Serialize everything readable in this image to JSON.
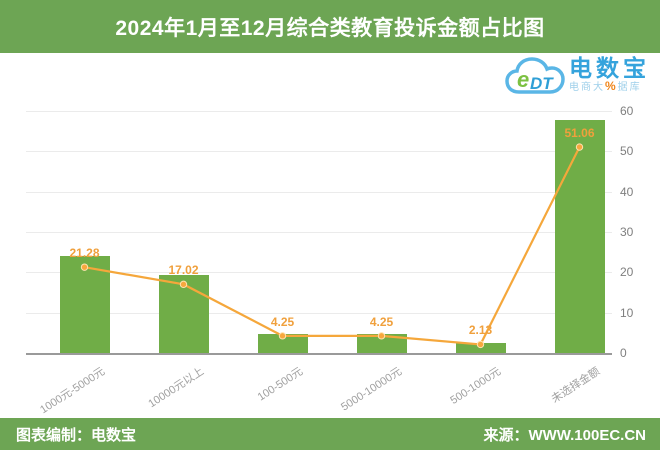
{
  "header": {
    "title": "2024年1月至12月综合类教育投诉金额占比图",
    "bg_color": "#6da554",
    "text_color": "#ffffff"
  },
  "logo": {
    "cloud_e": "e",
    "cloud_dt": "DT",
    "name": "电数宝",
    "sub_left": "电商大",
    "sub_pct": "%",
    "sub_right": "据库",
    "name_color": "#35a3dc",
    "cloud_color": "#5ab6e6",
    "pct_color": "#f08519"
  },
  "footer": {
    "left": "图表编制：电数宝",
    "right": "来源：WWW.100EC.CN",
    "bg_color": "#6da554"
  },
  "chart_data": {
    "type": "bar",
    "line_overlay": true,
    "title": "2024年1月至12月综合类教育投诉金额占比图",
    "categories": [
      "1000元-5000元",
      "10000元以上",
      "100-500元",
      "5000-10000元",
      "500-1000元",
      "未选择金额"
    ],
    "values": [
      21.28,
      17.02,
      4.25,
      4.25,
      2.13,
      51.06
    ],
    "value_labels": [
      "21.28",
      "17.02",
      "4.25",
      "4.25",
      "2.13",
      "51.06"
    ],
    "xlabel": "",
    "ylabel": "",
    "ylim": [
      0,
      60
    ],
    "y_ticks": [
      0,
      10,
      20,
      30,
      40,
      50,
      60
    ],
    "y_axis_side": "right",
    "grid": true,
    "legend": "none",
    "bar_color": "#70ad47",
    "line_color": "#f5a73b",
    "marker_color": "#f7a83e",
    "value_label_color": "#f0a03c",
    "bar_axis_max": 53
  }
}
